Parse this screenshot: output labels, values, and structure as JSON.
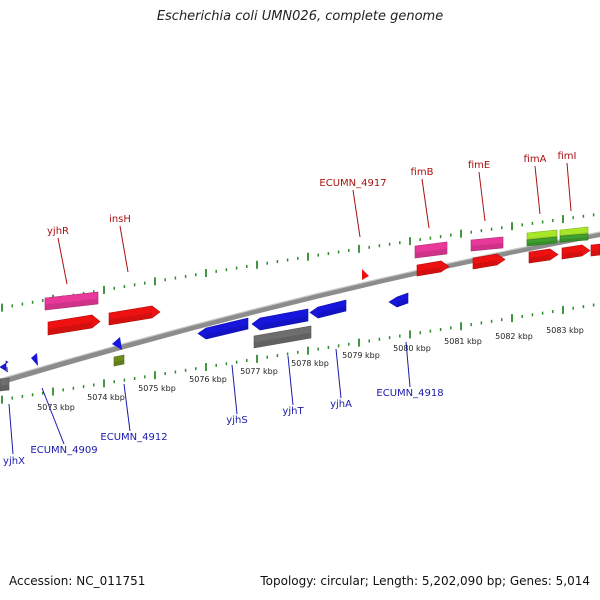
{
  "title": "Escherichia coli UMN026, complete genome",
  "accession": "Accession: NC_011751",
  "summary": "Topology: circular; Length: 5,202,090 bp; Genes: 5,014",
  "colors": {
    "gene_label_top": "#aa1111",
    "gene_label_bottom": "#1a1aaa",
    "backbone": "#8c8c8c",
    "tick": "#2e8b2e",
    "red_feature": "#ee1111",
    "pink_feature": "#e8389a",
    "blue_feature": "#1616dd",
    "gray_feature": "#6e6e6e",
    "olive_feature": "#6e8c1e",
    "lime_feature": "#a8e62a",
    "green_feature": "#3f9f2f"
  },
  "kbp_labels": [
    "5073 kbp",
    "5074 kbp",
    "5075 kbp",
    "5076 kbp",
    "5077 kbp",
    "5078 kbp",
    "5079 kbp",
    "5080 kbp",
    "5081 kbp",
    "5082 kbp",
    "5083 kbp"
  ],
  "top_gene_labels": [
    "yjhR",
    "insH",
    "ECUMN_4917",
    "fimB",
    "fimE",
    "fimA",
    "fimI"
  ],
  "bottom_gene_labels": [
    "yjhX",
    "ECUMN_4909",
    "ECUMN_4912",
    "yjhS",
    "yjhT",
    "yjhA",
    "ECUMN_4918"
  ]
}
